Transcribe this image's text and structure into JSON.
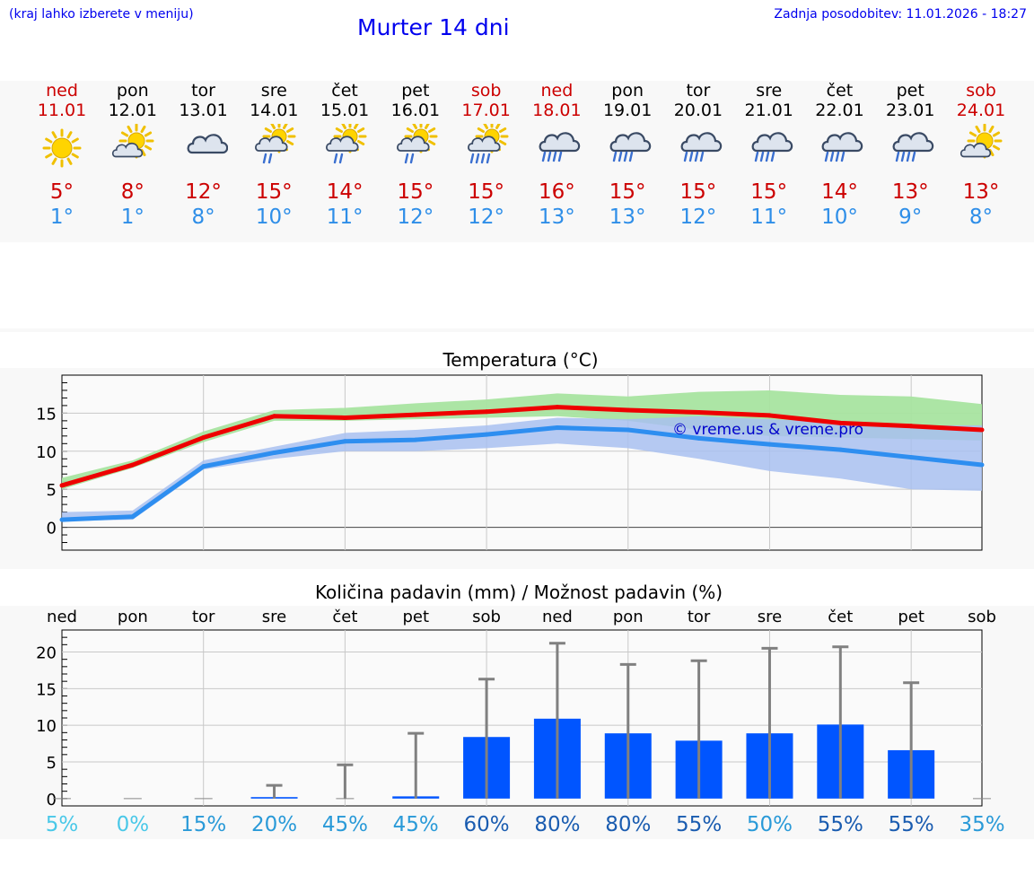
{
  "header": {
    "left_note": "(kraj lahko izberete v meniju)",
    "title": "Murter 14 dni",
    "updated": "Zadnja posodobitev: 11.01.2026 - 18:27"
  },
  "forecast": [
    {
      "day": "ned",
      "date": "11.01",
      "icon": "sun-icon",
      "max": "5°",
      "min": "1°",
      "weekend": true
    },
    {
      "day": "pon",
      "date": "12.01",
      "icon": "sun-cloud-icon",
      "max": "8°",
      "min": "1°",
      "weekend": false
    },
    {
      "day": "tor",
      "date": "13.01",
      "icon": "cloud-icon",
      "max": "12°",
      "min": "8°",
      "weekend": false
    },
    {
      "day": "sre",
      "date": "14.01",
      "icon": "sun-cloud-light-rain-icon",
      "max": "15°",
      "min": "10°",
      "weekend": false
    },
    {
      "day": "čet",
      "date": "15.01",
      "icon": "sun-cloud-light-rain-icon",
      "max": "14°",
      "min": "11°",
      "weekend": false
    },
    {
      "day": "pet",
      "date": "16.01",
      "icon": "sun-cloud-light-rain-icon",
      "max": "15°",
      "min": "12°",
      "weekend": false
    },
    {
      "day": "sob",
      "date": "17.01",
      "icon": "sun-cloud-rain-icon",
      "max": "15°",
      "min": "12°",
      "weekend": true
    },
    {
      "day": "ned",
      "date": "18.01",
      "icon": "cloud-rain-icon",
      "max": "16°",
      "min": "13°",
      "weekend": true
    },
    {
      "day": "pon",
      "date": "19.01",
      "icon": "cloud-rain-icon",
      "max": "15°",
      "min": "13°",
      "weekend": false
    },
    {
      "day": "tor",
      "date": "20.01",
      "icon": "cloud-rain-icon",
      "max": "15°",
      "min": "12°",
      "weekend": false
    },
    {
      "day": "sre",
      "date": "21.01",
      "icon": "cloud-rain-icon",
      "max": "15°",
      "min": "11°",
      "weekend": false
    },
    {
      "day": "čet",
      "date": "22.01",
      "icon": "cloud-rain-icon",
      "max": "14°",
      "min": "10°",
      "weekend": false
    },
    {
      "day": "pet",
      "date": "23.01",
      "icon": "cloud-rain-icon",
      "max": "13°",
      "min": "9°",
      "weekend": false
    },
    {
      "day": "sob",
      "date": "24.01",
      "icon": "sun-cloud-icon",
      "max": "13°",
      "min": "8°",
      "weekend": true
    }
  ],
  "colors": {
    "max_line": "#ee0000",
    "min_line": "#2e8ef0",
    "max_band": "#a8e4a0",
    "min_band": "#a8c0f0",
    "overlap": "#7cc8a8",
    "bar": "#0055ff",
    "whisker": "#808080",
    "watermark": "#0000cc"
  },
  "chart_data": [
    {
      "type": "line",
      "title": "Temperatura (°C)",
      "categories": [
        "11.01",
        "12.01",
        "13.01",
        "14.01",
        "15.01",
        "16.01",
        "17.01",
        "18.01",
        "19.01",
        "20.01",
        "21.01",
        "22.01",
        "23.01",
        "24.01"
      ],
      "ylim": [
        -3,
        20
      ],
      "yticks": [
        0,
        5,
        10,
        15
      ],
      "watermark": "© vreme.us & vreme.pro",
      "series": [
        {
          "name": "max",
          "values": [
            5.5,
            8.2,
            11.8,
            14.6,
            14.4,
            14.8,
            15.2,
            15.8,
            15.4,
            15.1,
            14.7,
            13.7,
            13.3,
            12.8
          ],
          "band_low": [
            5.0,
            7.8,
            11.2,
            14.0,
            14.0,
            14.2,
            14.4,
            14.6,
            14.0,
            12.8,
            12.0,
            11.8,
            11.6,
            11.4
          ],
          "band_high": [
            6.5,
            8.8,
            12.6,
            15.4,
            15.7,
            16.3,
            16.8,
            17.6,
            17.2,
            17.8,
            18.0,
            17.4,
            17.2,
            16.2
          ]
        },
        {
          "name": "min",
          "values": [
            1.0,
            1.4,
            8.0,
            9.8,
            11.3,
            11.5,
            12.2,
            13.1,
            12.8,
            11.7,
            10.9,
            10.2,
            9.2,
            8.2
          ],
          "band_low": [
            0.8,
            1.0,
            7.6,
            9.0,
            10.0,
            10.0,
            10.4,
            11.0,
            10.4,
            9.0,
            7.4,
            6.4,
            5.0,
            4.8
          ],
          "band_high": [
            2.0,
            2.2,
            8.8,
            10.6,
            12.4,
            12.8,
            13.4,
            14.4,
            14.2,
            14.6,
            14.2,
            13.8,
            13.4,
            13.4
          ]
        }
      ]
    },
    {
      "type": "bar",
      "title": "Količina padavin (mm) / Možnost padavin (%)",
      "categories": [
        "ned",
        "pon",
        "tor",
        "sre",
        "čet",
        "pet",
        "sob",
        "ned",
        "pon",
        "tor",
        "sre",
        "čet",
        "pet",
        "sob"
      ],
      "ylim": [
        -1,
        23
      ],
      "yticks": [
        0,
        5,
        10,
        15,
        20
      ],
      "values": [
        0,
        0,
        0,
        0.2,
        0,
        0.3,
        8.4,
        10.9,
        8.9,
        7.9,
        8.9,
        10.1,
        6.6,
        0
      ],
      "whisker_low": [
        0,
        0,
        0,
        0,
        0,
        0,
        0,
        0,
        0,
        0,
        0,
        0,
        0,
        0
      ],
      "whisker_high": [
        0,
        0,
        0,
        1.8,
        4.6,
        8.9,
        16.3,
        21.2,
        18.3,
        18.8,
        20.5,
        20.7,
        15.8,
        0
      ],
      "probability": [
        "5%",
        "0%",
        "15%",
        "20%",
        "45%",
        "45%",
        "60%",
        "80%",
        "80%",
        "55%",
        "50%",
        "55%",
        "55%",
        "35%"
      ],
      "probability_values": [
        5,
        0,
        15,
        20,
        45,
        45,
        60,
        80,
        80,
        55,
        50,
        55,
        55,
        35
      ]
    }
  ]
}
